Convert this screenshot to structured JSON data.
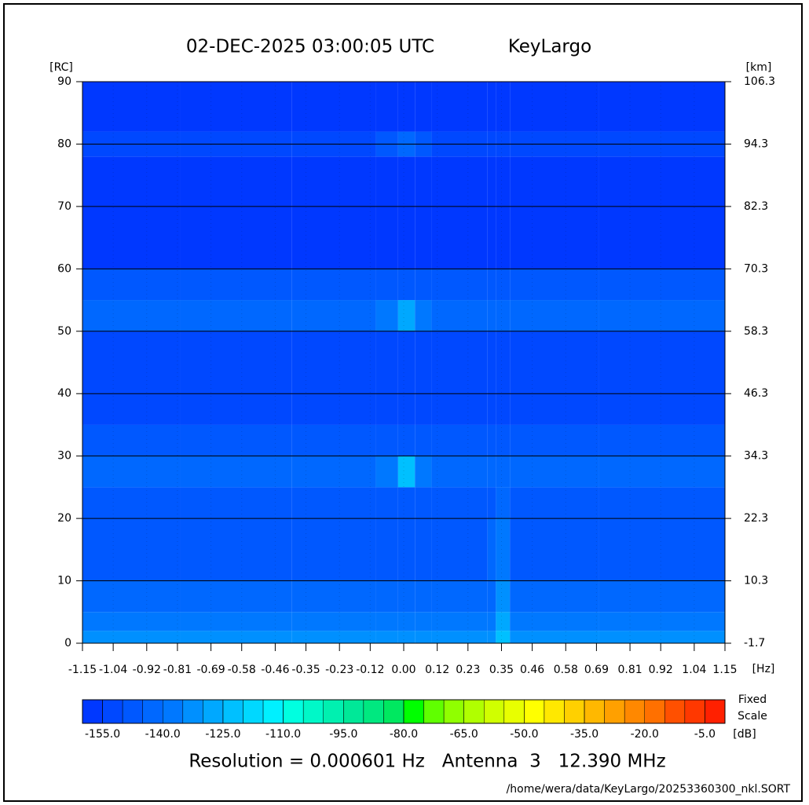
{
  "chart_data": {
    "type": "heatmap",
    "title": "02-DEC-2025 03:00:05 UTC",
    "subtitle": "KeyLargo",
    "ylabel": "[RC]",
    "y2label": "[km]",
    "xlabel": "[Hz]",
    "xlim": [
      -1.15,
      1.15
    ],
    "ylim": [
      0,
      90
    ],
    "y2lim": [
      -1.7,
      106.3
    ],
    "xticks": [
      -1.15,
      -1.04,
      -0.92,
      -0.81,
      -0.69,
      -0.58,
      -0.46,
      -0.35,
      -0.23,
      -0.12,
      {
        "value": 0,
        "label": "0.00"
      },
      0.12,
      0.23,
      0.35,
      0.46,
      0.58,
      0.69,
      0.81,
      0.92,
      1.04,
      1.15
    ],
    "yticks": [
      0,
      10,
      20,
      30,
      40,
      50,
      60,
      70,
      80,
      90
    ],
    "y2ticks": [
      -1.7,
      10.3,
      22.3,
      34.3,
      46.3,
      58.3,
      70.3,
      82.3,
      94.3,
      106.3
    ],
    "grid": true,
    "xbins": [
      -1.15,
      -0.8,
      -0.4,
      -0.1,
      -0.02,
      0.04,
      0.1,
      0.3,
      0.33,
      0.38,
      0.7,
      1.15
    ],
    "ybins": [
      0,
      2,
      5,
      10,
      20,
      25,
      30,
      35,
      50,
      55,
      60,
      78,
      82,
      90
    ],
    "z": [
      [
        -135,
        -135,
        -135,
        -135,
        -133,
        -135,
        -135,
        -132,
        -125,
        -135,
        -135
      ],
      [
        -140,
        -140,
        -140,
        -140,
        -138,
        -140,
        -140,
        -137,
        -130,
        -140,
        -140
      ],
      [
        -145,
        -145,
        -145,
        -145,
        -144,
        -145,
        -145,
        -142,
        -135,
        -145,
        -145
      ],
      [
        -148,
        -148,
        -148,
        -148,
        -147,
        -148,
        -148,
        -142,
        -138,
        -148,
        -148
      ],
      [
        -150,
        -150,
        -150,
        -150,
        -150,
        -150,
        -150,
        -148,
        -145,
        -150,
        -150
      ],
      [
        -145,
        -145,
        -145,
        -140,
        -125,
        -140,
        -145,
        -145,
        -145,
        -145,
        -145
      ],
      [
        -150,
        -150,
        -150,
        -150,
        -150,
        -150,
        -150,
        -150,
        -150,
        -150,
        -150
      ],
      [
        -152,
        -152,
        -152,
        -152,
        -152,
        -152,
        -152,
        -152,
        -152,
        -152,
        -152
      ],
      [
        -145,
        -145,
        -145,
        -140,
        -130,
        -140,
        -145,
        -145,
        -145,
        -145,
        -145
      ],
      [
        -148,
        -148,
        -148,
        -148,
        -148,
        -148,
        -148,
        -148,
        -148,
        -148,
        -148
      ],
      [
        -156,
        -156,
        -156,
        -156,
        -156,
        -156,
        -156,
        -156,
        -156,
        -156,
        -156
      ],
      [
        -152,
        -152,
        -152,
        -148,
        -142,
        -148,
        -152,
        -152,
        -152,
        -152,
        -152
      ],
      [
        -157,
        -157,
        -157,
        -157,
        -157,
        -157,
        -157,
        -157,
        -157,
        -157,
        -157
      ]
    ],
    "colorbar": {
      "lim": [
        -160,
        0
      ],
      "label": "[dB]",
      "note": [
        "Fixed",
        "Scale"
      ],
      "ticks": [
        {
          "value": -155,
          "label": "-155.0"
        },
        {
          "value": -140,
          "label": "-140.0"
        },
        {
          "value": -125,
          "label": "-125.0"
        },
        {
          "value": -110,
          "label": "-110.0"
        },
        {
          "value": -95,
          "label": "-95.0"
        },
        {
          "value": -80,
          "label": "-80.0"
        },
        {
          "value": -65,
          "label": "-65.0"
        },
        {
          "value": -50,
          "label": "-50.0"
        },
        {
          "value": -35,
          "label": "-35.0"
        },
        {
          "value": -20,
          "label": "-20.0"
        },
        {
          "value": -5,
          "label": "-5.0"
        }
      ],
      "colors": [
        "#0038ff",
        "#0048ff",
        "#0058ff",
        "#0068ff",
        "#0078ff",
        "#0090ff",
        "#00a8ff",
        "#00c0ff",
        "#00d8ff",
        "#00f0ff",
        "#00ffe0",
        "#00f8c8",
        "#00f0b0",
        "#00e898",
        "#00e880",
        "#00e860",
        "#00ff00",
        "#60ff00",
        "#90ff00",
        "#b0ff00",
        "#d0ff00",
        "#e8ff00",
        "#ffff00",
        "#ffe800",
        "#ffd000",
        "#ffb800",
        "#ffa000",
        "#ff8800",
        "#ff7000",
        "#ff5000",
        "#ff3800",
        "#ff2000"
      ]
    },
    "footer": "Resolution = 0.000601 Hz   Antenna  3   12.390 MHz",
    "path": "/home/wera/data/KeyLargo/20253360300_nkl.SORT"
  }
}
